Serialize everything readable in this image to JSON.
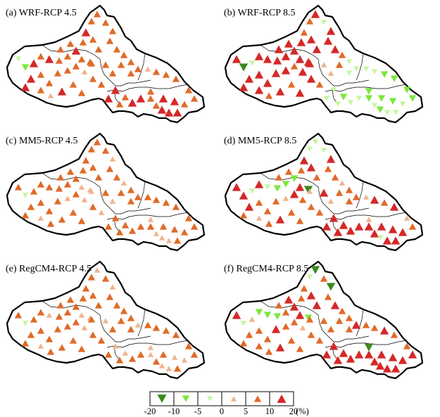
{
  "panels": [
    {
      "label": "(a) WRF-RCP 4.5"
    },
    {
      "label": "(b) WRF-RCP 8.5"
    },
    {
      "label": "(c) MM5-RCP 4.5"
    },
    {
      "label": "(d) MM5-RCP 8.5"
    },
    {
      "label": "(e) RegCM4-RCP 4.5"
    },
    {
      "label": "(f) RegCM4-RCP 8.5"
    }
  ],
  "legend": {
    "classes": [
      {
        "symbol": "down-triangle",
        "color": "#3a8a1e",
        "size": "large"
      },
      {
        "symbol": "down-triangle",
        "color": "#7ae83a",
        "size": "medium"
      },
      {
        "symbol": "down-triangle",
        "color": "#c6f7a0",
        "size": "small"
      },
      {
        "symbol": "up-triangle",
        "color": "#f0b48c",
        "size": "small"
      },
      {
        "symbol": "up-triangle",
        "color": "#e06a28",
        "size": "medium"
      },
      {
        "symbol": "up-triangle",
        "color": "#d42828",
        "size": "large"
      }
    ],
    "ticks": [
      "-20",
      "-10",
      "-5",
      "0",
      "5",
      "10",
      "20"
    ],
    "unit": "(%)"
  },
  "colors": {
    "strong_decrease": "#3a8a1e",
    "moderate_decrease": "#7ae83a",
    "slight_decrease": "#c6f7a0",
    "slight_increase": "#f0b48c",
    "moderate_increase": "#e06a28",
    "strong_increase": "#d42828"
  }
}
